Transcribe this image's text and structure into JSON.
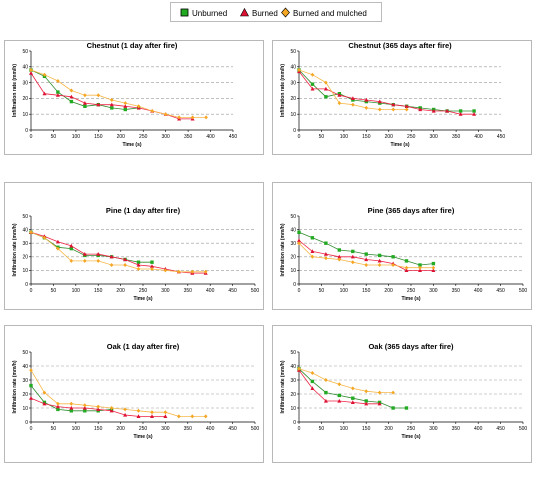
{
  "legend": {
    "items": [
      {
        "name": "Unburned",
        "color": "#22aa22",
        "marker": "square"
      },
      {
        "name": "Burned",
        "color": "#dd1133",
        "marker": "triangle"
      },
      {
        "name": "Burned and mulched",
        "color": "#f5a623",
        "marker": "diamond"
      }
    ]
  },
  "chart_data": [
    {
      "type": "line",
      "title": "Chestnut (1 day after fire)",
      "xlabel": "Time (s)",
      "ylabel": "Infiltration rate (mm/h)",
      "xlim": [
        0,
        450
      ],
      "ylim": [
        0,
        50
      ],
      "xticks": [
        0,
        50,
        100,
        150,
        200,
        250,
        300,
        350,
        400,
        450
      ],
      "yticks": [
        0,
        10,
        20,
        30,
        40,
        50
      ],
      "grid": "horizontal dashed at 10,20,30,40",
      "series": [
        {
          "name": "Unburned",
          "x": [
            0,
            30,
            60,
            90,
            120,
            150,
            180,
            210,
            240
          ],
          "y": [
            38,
            34,
            24,
            18,
            15,
            16,
            14,
            13,
            14
          ]
        },
        {
          "name": "Burned",
          "x": [
            0,
            30,
            60,
            90,
            120,
            150,
            180,
            210,
            240,
            270,
            300,
            330,
            360
          ],
          "y": [
            36,
            23,
            22,
            21,
            17,
            16,
            16,
            15,
            14,
            12,
            10,
            7,
            7
          ]
        },
        {
          "name": "Burned and mulched",
          "x": [
            0,
            30,
            60,
            90,
            120,
            150,
            180,
            210,
            240,
            270,
            300,
            330,
            360,
            390
          ],
          "y": [
            38,
            35,
            31,
            25,
            22,
            22,
            19,
            17,
            15,
            12,
            10,
            8,
            8,
            8
          ]
        }
      ]
    },
    {
      "type": "line",
      "title": "Chestnut (365 days after fire)",
      "xlabel": "Time (s)",
      "ylabel": "Infiltration rate (mm/h)",
      "xlim": [
        0,
        450
      ],
      "ylim": [
        0,
        50
      ],
      "xticks": [
        0,
        50,
        100,
        150,
        200,
        250,
        300,
        350,
        400,
        450
      ],
      "yticks": [
        0,
        10,
        20,
        30,
        40,
        50
      ],
      "grid": "horizontal dashed at 10,20,30,40",
      "series": [
        {
          "name": "Unburned",
          "x": [
            0,
            30,
            60,
            90,
            120,
            150,
            180,
            210,
            240,
            270,
            300,
            330,
            360,
            390
          ],
          "y": [
            38,
            29,
            21,
            23,
            19,
            18,
            17,
            16,
            15,
            14,
            13,
            12,
            12,
            12
          ]
        },
        {
          "name": "Burned",
          "x": [
            0,
            30,
            60,
            90,
            120,
            150,
            180,
            210,
            240,
            270,
            300,
            330,
            360,
            390
          ],
          "y": [
            37,
            26,
            26,
            22,
            20,
            19,
            18,
            16,
            15,
            13,
            12,
            12,
            10,
            10
          ]
        },
        {
          "name": "Burned and mulched",
          "x": [
            0,
            30,
            60,
            90,
            120,
            150,
            180,
            210,
            240
          ],
          "y": [
            38,
            35,
            30,
            17,
            16,
            14,
            13,
            13,
            13
          ]
        }
      ]
    },
    {
      "type": "line",
      "title": "Pine (1 day after fire)",
      "xlabel": "Time (s)",
      "ylabel": "Infiltration rate (mm/h)",
      "xlim": [
        0,
        500
      ],
      "ylim": [
        0,
        50
      ],
      "xticks": [
        0,
        50,
        100,
        150,
        200,
        250,
        300,
        350,
        400,
        450,
        500
      ],
      "yticks": [
        0,
        10,
        20,
        30,
        40,
        50
      ],
      "grid": "horizontal dashed at 10,20,30,40",
      "series": [
        {
          "name": "Unburned",
          "x": [
            0,
            30,
            60,
            90,
            120,
            150,
            180,
            210,
            240,
            270
          ],
          "y": [
            38,
            34,
            27,
            26,
            21,
            21,
            20,
            18,
            16,
            16
          ]
        },
        {
          "name": "Burned",
          "x": [
            0,
            30,
            60,
            90,
            120,
            150,
            180,
            210,
            240,
            270,
            300,
            330,
            360,
            390
          ],
          "y": [
            38,
            35,
            31,
            28,
            22,
            22,
            20,
            18,
            14,
            13,
            11,
            9,
            8,
            8
          ]
        },
        {
          "name": "Burned and mulched",
          "x": [
            0,
            30,
            60,
            90,
            120,
            150,
            180,
            210,
            240,
            270,
            300,
            330,
            360,
            390
          ],
          "y": [
            38,
            34,
            26,
            17,
            17,
            17,
            14,
            14,
            11,
            11,
            10,
            9,
            9,
            9
          ]
        }
      ]
    },
    {
      "type": "line",
      "title": "Pine (365 days after fire)",
      "xlabel": "Time (s)",
      "ylabel": "Infiltration rate (mm/h)",
      "xlim": [
        0,
        500
      ],
      "ylim": [
        0,
        50
      ],
      "xticks": [
        0,
        50,
        100,
        150,
        200,
        250,
        300,
        350,
        400,
        450,
        500
      ],
      "yticks": [
        0,
        10,
        20,
        30,
        40,
        50
      ],
      "grid": "horizontal dashed at 10,20,30,40",
      "series": [
        {
          "name": "Unburned",
          "x": [
            0,
            30,
            60,
            90,
            120,
            150,
            180,
            210,
            240,
            270,
            300
          ],
          "y": [
            38,
            34,
            30,
            25,
            24,
            22,
            21,
            20,
            17,
            14,
            15
          ]
        },
        {
          "name": "Burned",
          "x": [
            0,
            30,
            60,
            90,
            120,
            150,
            180,
            210,
            240,
            270,
            300
          ],
          "y": [
            32,
            24,
            22,
            20,
            20,
            18,
            17,
            15,
            10,
            10,
            10
          ]
        },
        {
          "name": "Burned and mulched",
          "x": [
            0,
            30,
            60,
            90,
            120,
            150,
            180,
            210,
            240,
            270,
            300
          ],
          "y": [
            30,
            20,
            19,
            18,
            16,
            14,
            14,
            14,
            12,
            12,
            12
          ]
        }
      ]
    },
    {
      "type": "line",
      "title": "Oak (1 day after fire)",
      "xlabel": "Time (s)",
      "ylabel": "Infiltration rate (mm/h)",
      "xlim": [
        0,
        500
      ],
      "ylim": [
        0,
        50
      ],
      "xticks": [
        0,
        50,
        100,
        150,
        200,
        250,
        300,
        350,
        400,
        450,
        500
      ],
      "yticks": [
        0,
        10,
        20,
        30,
        40,
        50
      ],
      "grid": "horizontal dashed at 10,20,30,40",
      "series": [
        {
          "name": "Unburned",
          "x": [
            0,
            30,
            60,
            90,
            120,
            150,
            180
          ],
          "y": [
            26,
            14,
            9,
            8,
            8,
            8,
            9
          ]
        },
        {
          "name": "Burned",
          "x": [
            0,
            30,
            60,
            90,
            120,
            150,
            180,
            210,
            240,
            270,
            300
          ],
          "y": [
            17,
            13,
            11,
            10,
            10,
            9,
            8,
            5,
            4,
            4,
            4
          ]
        },
        {
          "name": "Burned and mulched",
          "x": [
            0,
            30,
            60,
            90,
            120,
            150,
            180,
            210,
            240,
            270,
            300,
            330,
            360,
            390
          ],
          "y": [
            37,
            21,
            13,
            13,
            12,
            11,
            10,
            9,
            8,
            7,
            7,
            4,
            4,
            4
          ]
        }
      ]
    },
    {
      "type": "line",
      "title": "Oak (365 days after fire)",
      "xlabel": "Time (s)",
      "ylabel": "Infiltration rate (mm/h)",
      "xlim": [
        0,
        500
      ],
      "ylim": [
        0,
        50
      ],
      "xticks": [
        0,
        50,
        100,
        150,
        200,
        250,
        300,
        350,
        400,
        450,
        500
      ],
      "yticks": [
        0,
        10,
        20,
        30,
        40,
        50
      ],
      "grid": "horizontal dashed at 10,20,30,40",
      "series": [
        {
          "name": "Unburned",
          "x": [
            0,
            30,
            60,
            90,
            120,
            150,
            180,
            210,
            240
          ],
          "y": [
            38,
            29,
            21,
            19,
            17,
            15,
            14,
            10,
            10
          ]
        },
        {
          "name": "Burned",
          "x": [
            0,
            30,
            60,
            90,
            120,
            150,
            180
          ],
          "y": [
            37,
            24,
            15,
            15,
            14,
            13,
            13
          ]
        },
        {
          "name": "Burned and mulched",
          "x": [
            0,
            30,
            60,
            90,
            120,
            150,
            180,
            210
          ],
          "y": [
            38,
            35,
            30,
            27,
            24,
            22,
            21,
            21
          ]
        }
      ]
    }
  ]
}
